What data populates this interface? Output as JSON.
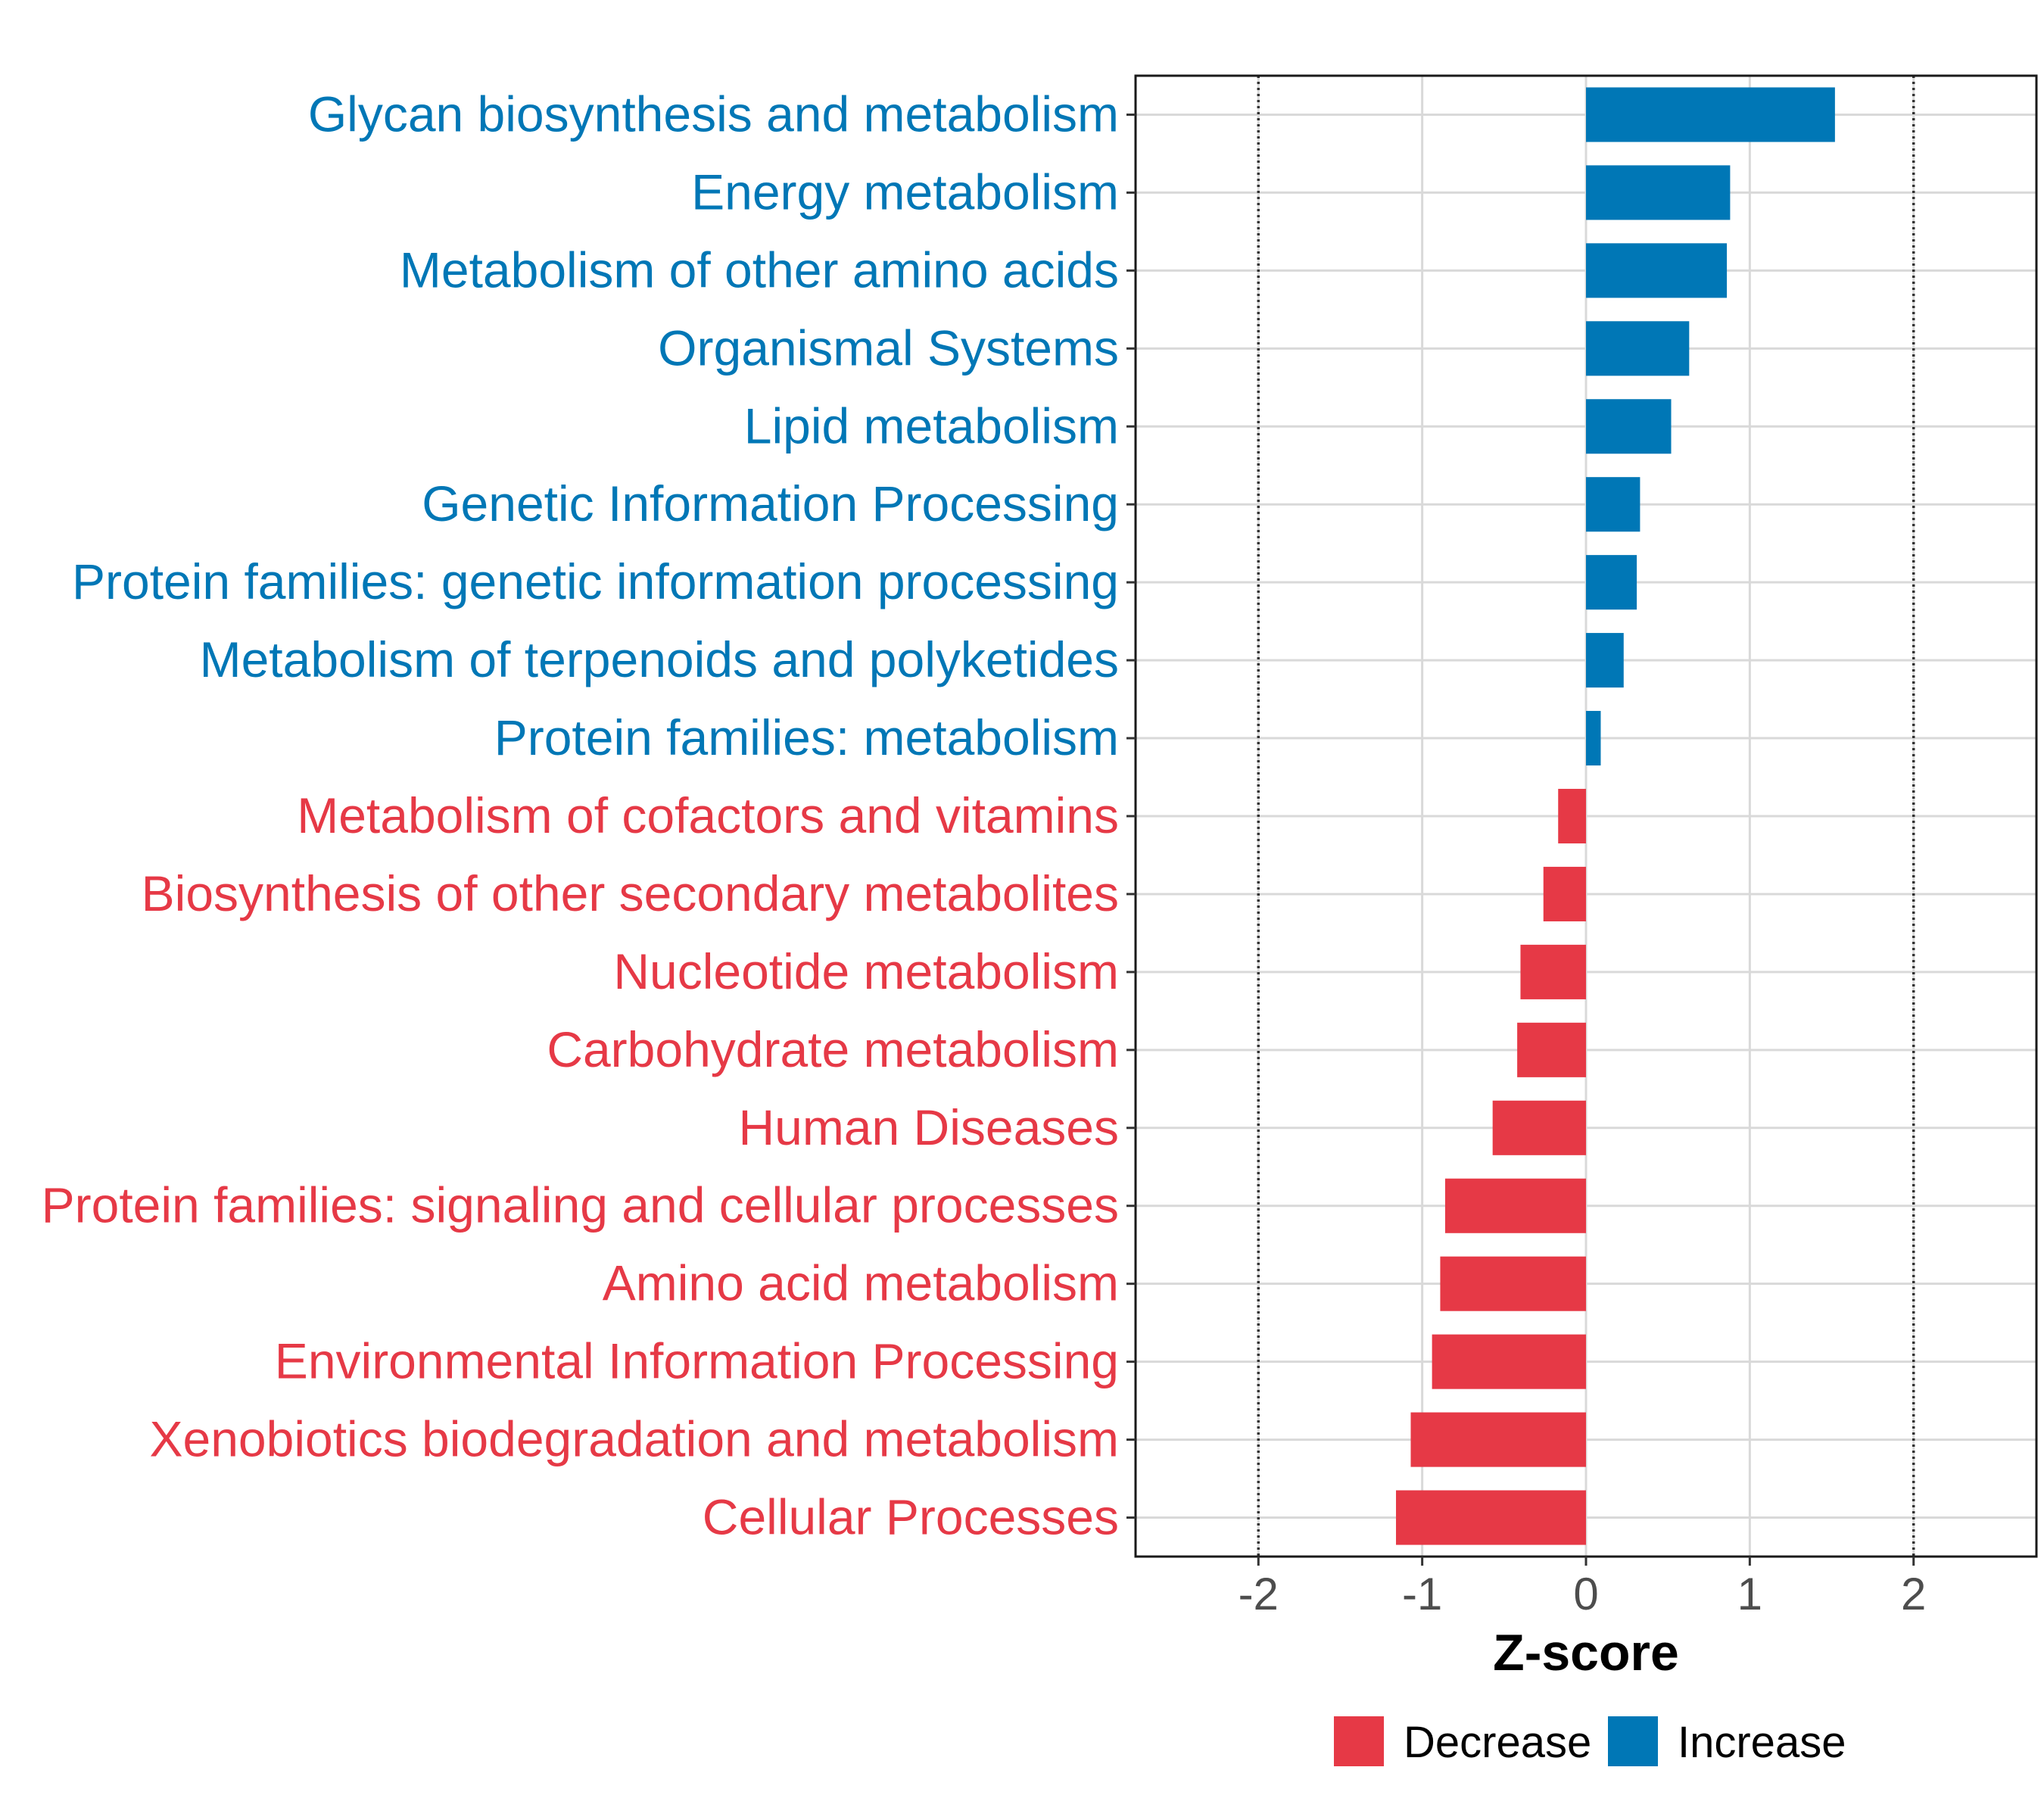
{
  "chart_data": {
    "type": "bar",
    "orientation": "horizontal",
    "xlabel": "Z-score",
    "xlim": [
      -2.75,
      2.75
    ],
    "xticks": [
      -2,
      -1,
      0,
      1,
      2
    ],
    "xtick_labels": [
      "-2",
      "-1",
      "0",
      "1",
      "2"
    ],
    "reference_lines": [
      -2,
      2
    ],
    "grid": true,
    "legend_position": "bottom",
    "categories": [
      "Glycan biosynthesis and metabolism",
      "Energy metabolism",
      "Metabolism of other amino acids",
      "Organismal Systems",
      "Lipid metabolism",
      "Genetic Information Processing",
      "Protein families: genetic information processing",
      "Metabolism of terpenoids and polyketides",
      "Protein families: metabolism",
      "Metabolism of cofactors and vitamins",
      "Biosynthesis of other secondary metabolites",
      "Nucleotide metabolism",
      "Carbohydrate metabolism",
      "Human Diseases",
      "Protein families: signaling and cellular processes",
      "Amino acid metabolism",
      "Environmental Information Processing",
      "Xenobiotics biodegradation and metabolism",
      "Cellular Processes"
    ],
    "values": [
      1.52,
      0.88,
      0.86,
      0.63,
      0.52,
      0.33,
      0.31,
      0.23,
      0.09,
      -0.17,
      -0.26,
      -0.4,
      -0.42,
      -0.57,
      -0.86,
      -0.89,
      -0.94,
      -1.07,
      -1.16
    ],
    "groups": [
      "Increase",
      "Increase",
      "Increase",
      "Increase",
      "Increase",
      "Increase",
      "Increase",
      "Increase",
      "Increase",
      "Decrease",
      "Decrease",
      "Decrease",
      "Decrease",
      "Decrease",
      "Decrease",
      "Decrease",
      "Decrease",
      "Decrease",
      "Decrease"
    ],
    "legend": [
      {
        "label": "Decrease",
        "color": "#e63946"
      },
      {
        "label": "Increase",
        "color": "#0077b6"
      }
    ],
    "colors": {
      "Decrease": "#e63946",
      "Increase": "#0077b6"
    }
  }
}
